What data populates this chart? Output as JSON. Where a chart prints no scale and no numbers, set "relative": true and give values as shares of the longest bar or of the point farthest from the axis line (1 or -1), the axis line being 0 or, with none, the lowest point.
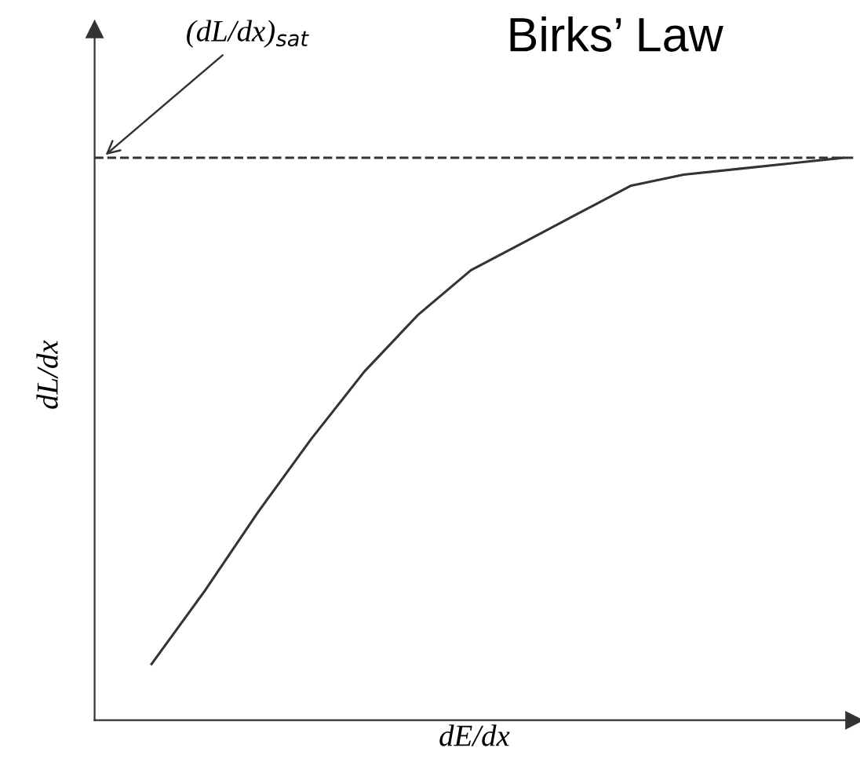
{
  "chart_data": {
    "type": "line",
    "title": "Birks’ Law",
    "xlabel": "dE/dx",
    "ylabel": "dL/dx",
    "relative": true,
    "categories": [
      null,
      null,
      null,
      null,
      null,
      null,
      null,
      null,
      null,
      null,
      null,
      null,
      null,
      null
    ],
    "series": [
      {
        "color": "#333333",
        "values": [
          0.1,
          0.23,
          0.37,
          0.5,
          0.62,
          0.72,
          0.8,
          0.85,
          0.9,
          0.95,
          0.97,
          0.98,
          0.99,
          1.0
        ]
      }
    ],
    "ref_lines": [
      {
        "axis": "y",
        "value": 1.0,
        "label": "(dL/dx)$_{sat}$",
        "color": "#333333",
        "line_style": "dashed"
      }
    ],
    "grid": false,
    "legend": false,
    "marker": "none",
    "line_style": "solid"
  }
}
